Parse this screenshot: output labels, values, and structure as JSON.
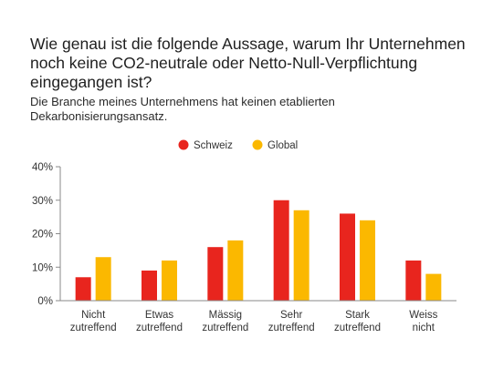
{
  "title": "Wie genau ist die folgende Aussage, warum Ihr Unternehmen noch keine CO2-neutrale oder Netto-Null-Verpflichtung eingegangen ist?",
  "subtitle": "Die Branche meines Unternehmens hat keinen etablierten Dekarbonisierungsansatz.",
  "chart_data": {
    "type": "bar",
    "categories": [
      [
        "Nicht",
        "zutreffend"
      ],
      [
        "Etwas",
        "zutreffend"
      ],
      [
        "Mässig",
        "zutreffend"
      ],
      [
        "Sehr",
        "zutreffend"
      ],
      [
        "Stark",
        "zutreffend"
      ],
      [
        "Weiss",
        "nicht"
      ]
    ],
    "series": [
      {
        "name": "Schweiz",
        "color": "#e8251e",
        "values": [
          7,
          9,
          16,
          30,
          26,
          12
        ]
      },
      {
        "name": "Global",
        "color": "#fbb800",
        "values": [
          13,
          12,
          18,
          27,
          24,
          8
        ]
      }
    ],
    "yticks": [
      0,
      10,
      20,
      30,
      40
    ],
    "ytick_labels": [
      "0%",
      "10%",
      "20%",
      "30%",
      "40%"
    ],
    "ylim": [
      0,
      40
    ],
    "legend_position": "top-center",
    "grid": false
  }
}
